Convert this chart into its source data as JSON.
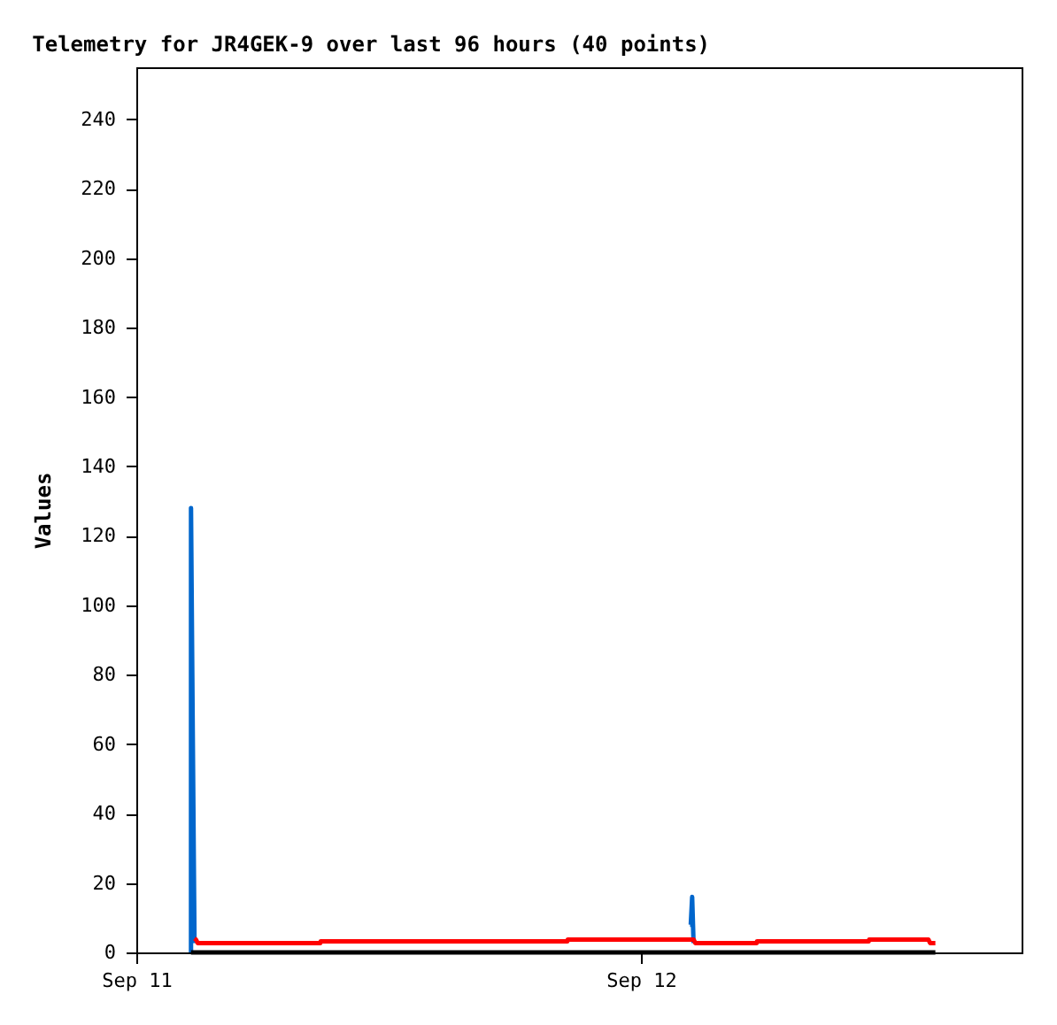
{
  "chart_data": {
    "type": "line",
    "title": "Telemetry for JR4GEK-9 over last 96 hours (40 points)",
    "ylabel": "Values",
    "xlim": [
      "--09-11T00:00",
      "--09-12T18:06"
    ],
    "xticks": [
      {
        "value": "--09-11T00:00",
        "label": "Sep 11"
      },
      {
        "value": "--09-12T00:00",
        "label": "Sep 12"
      }
    ],
    "ylim": [
      0,
      255
    ],
    "yticks": [
      0,
      20,
      40,
      60,
      80,
      100,
      120,
      140,
      160,
      180,
      200,
      220,
      240
    ],
    "grid": false,
    "marker": "none",
    "line_style": "solid",
    "series": [
      {
        "color": "#0066cc",
        "x": [
          "--09-11T02:36",
          "--09-11T02:36",
          "--09-11T02:41",
          "--09-11T02:46",
          "--09-11T12:00",
          "--09-12T02:20",
          "--09-12T02:22",
          "--09-12T02:26",
          "--09-12T02:30"
        ],
        "values": [
          0,
          128,
          64,
          2.7,
          null,
          8,
          8,
          16,
          2.7
        ]
      },
      {
        "color": "#ff0000",
        "x": [
          "--09-11T02:46",
          "--09-11T02:50",
          "--09-11T02:55",
          "--09-11T08:45",
          "--09-11T08:46",
          "--09-11T20:30",
          "--09-11T20:31",
          "--09-12T02:30",
          "--09-12T02:35",
          "--09-12T05:30",
          "--09-12T05:31",
          "--09-12T10:50",
          "--09-12T10:51",
          "--09-12T13:40",
          "--09-12T13:45",
          "--09-12T14:00"
        ],
        "values": [
          4,
          3.7,
          2.7,
          2.7,
          3.2,
          3.2,
          3.7,
          3.7,
          2.7,
          2.7,
          3.2,
          3.2,
          3.7,
          3.7,
          2.7,
          2.7
        ]
      },
      {
        "color": "#000000",
        "x": [
          "--09-11T02:36",
          "--09-12T14:00"
        ],
        "values": [
          0,
          0
        ]
      }
    ]
  }
}
